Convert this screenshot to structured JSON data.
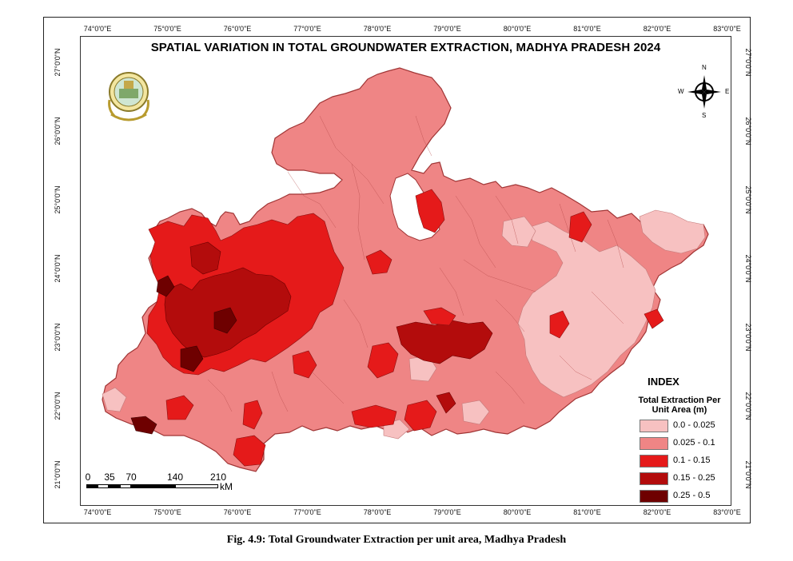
{
  "map": {
    "title": "SPATIAL VARIATION IN TOTAL GROUNDWATER EXTRACTION, MADHYA PRADESH 2024",
    "longitude_ticks": [
      "74°0'0\"E",
      "75°0'0\"E",
      "76°0'0\"E",
      "77°0'0\"E",
      "78°0'0\"E",
      "79°0'0\"E",
      "80°0'0\"E",
      "81°0'0\"E",
      "82°0'0\"E",
      "83°0'0\"E"
    ],
    "latitude_ticks": [
      "27°0'0\"N",
      "26°0'0\"N",
      "25°0'0\"N",
      "24°0'0\"N",
      "23°0'0\"N",
      "22°0'0\"N",
      "21°0'0\"N"
    ],
    "compass": {
      "icon": "compass-rose-icon",
      "n": "N",
      "s": "S",
      "e": "E",
      "w": "W"
    },
    "emblem": {
      "icon": "state-emblem-icon"
    },
    "colors": {
      "class1": "#f7c1c1",
      "class2": "#ef8585",
      "class3": "#e51a1a",
      "class4": "#b30c0c",
      "class5": "#6e0000",
      "boundary": "#b44848",
      "outline": "#a03535"
    }
  },
  "legend": {
    "title": "INDEX",
    "subtitle_line1": "Total Extraction Per",
    "subtitle_line2": "Unit Area (m)",
    "items": [
      {
        "label": "0.0 - 0.025",
        "color": "#f7c1c1"
      },
      {
        "label": "0.025 - 0.1",
        "color": "#ef8585"
      },
      {
        "label": "0.1 - 0.15",
        "color": "#e51a1a"
      },
      {
        "label": "0.15 - 0.25",
        "color": "#b30c0c"
      },
      {
        "label": "0.25 - 0.5",
        "color": "#6e0000"
      }
    ]
  },
  "scale_bar": {
    "labels": [
      "0",
      "35",
      "70",
      "140",
      "210"
    ],
    "unit": "kM"
  },
  "caption": "Fig. 4.9: Total Groundwater Extraction per unit area, Madhya Pradesh"
}
